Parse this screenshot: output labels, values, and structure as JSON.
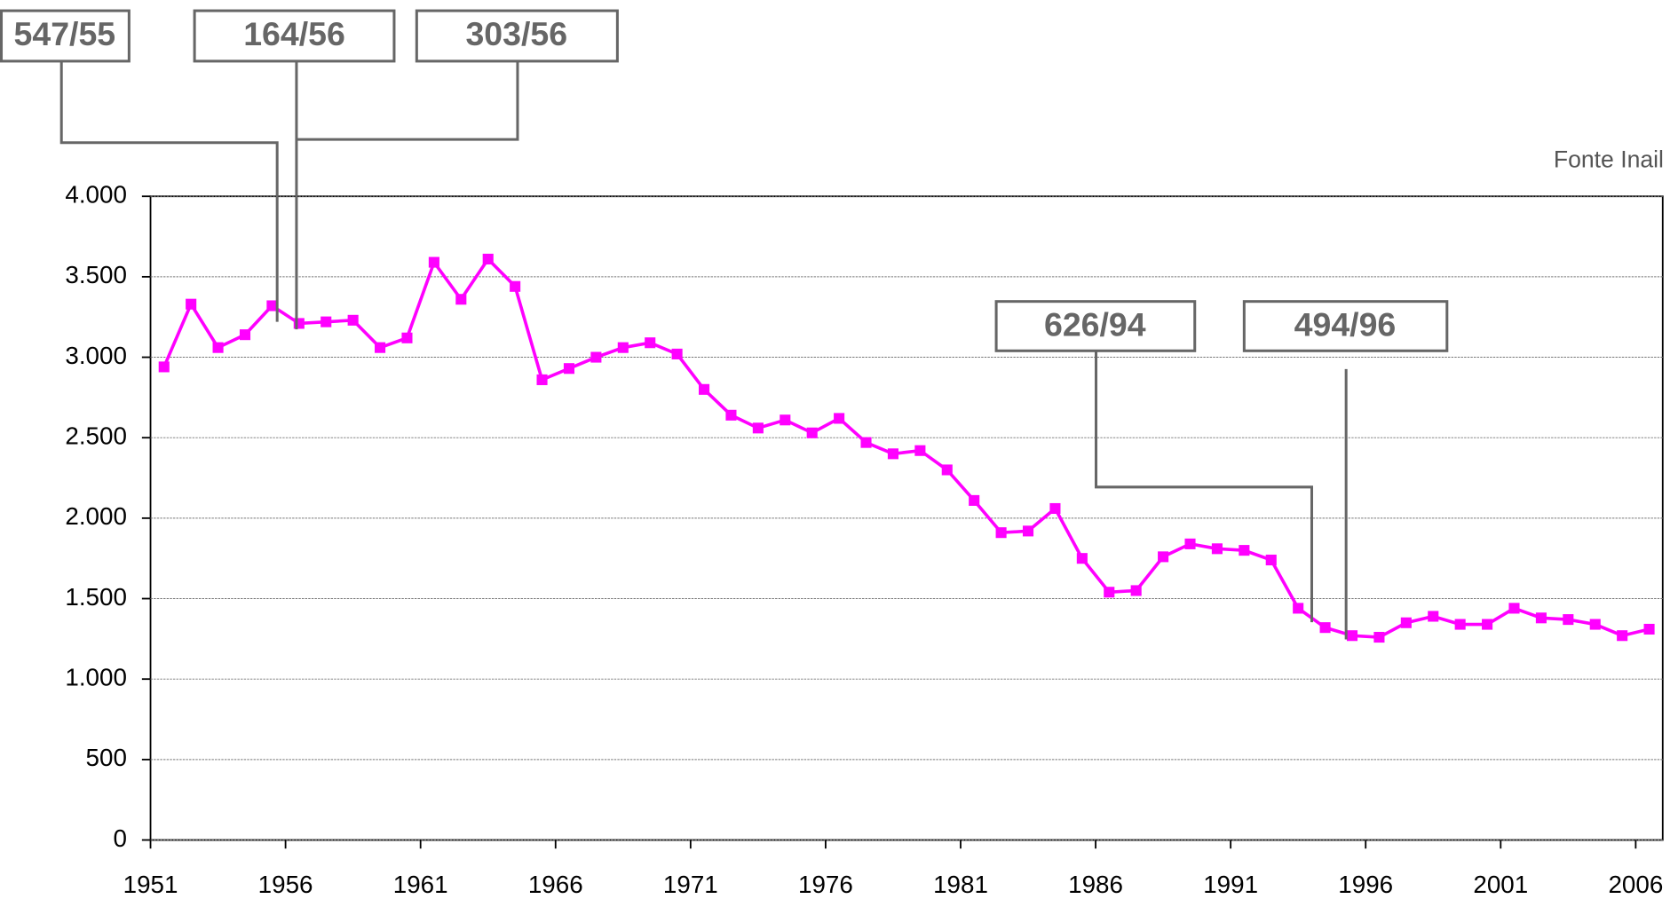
{
  "chart_data": {
    "type": "line",
    "source": "Fonte Inail",
    "annotations": [
      "547/55",
      "164/56",
      "303/56",
      "626/94",
      "494/96"
    ],
    "categories": [
      "1951",
      null,
      null,
      null,
      null,
      "1956",
      null,
      null,
      null,
      null,
      "1961",
      null,
      null,
      null,
      null,
      "1966",
      null,
      null,
      null,
      null,
      "1971",
      null,
      null,
      null,
      null,
      "1976",
      null,
      null,
      null,
      null,
      "1981",
      null,
      null,
      null,
      null,
      "1986",
      null,
      null,
      null,
      null,
      "1991",
      null,
      null,
      null,
      null,
      "1996",
      null,
      null,
      null,
      null,
      "2001",
      null,
      null,
      null,
      null,
      "2006"
    ],
    "values": [
      2940,
      3330,
      3060,
      3140,
      3320,
      3210,
      3220,
      3230,
      3060,
      3120,
      3590,
      3360,
      3610,
      3440,
      2860,
      2930,
      3000,
      3060,
      3090,
      3020,
      2800,
      2640,
      2560,
      2610,
      2530,
      2620,
      2470,
      2400,
      2420,
      2300,
      2110,
      1910,
      1920,
      2060,
      1750,
      1540,
      1550,
      1760,
      1840,
      1810,
      1800,
      1740,
      1440,
      1320,
      1270,
      1260,
      1350,
      1390,
      1340,
      1340,
      1440,
      1380,
      1370,
      1340,
      1270,
      1310
    ],
    "color": "#ff00ff",
    "ylim": [
      0,
      4000
    ],
    "yticks": [
      0,
      500,
      {
        "value": 1000,
        "label": "1.000"
      },
      {
        "value": 1500,
        "label": "1.500"
      },
      {
        "value": 2000,
        "label": "2.000"
      },
      {
        "value": 2500,
        "label": "2.500"
      },
      {
        "value": 3000,
        "label": "3.000"
      },
      {
        "value": 3500,
        "label": "3.500"
      },
      {
        "value": 4000,
        "label": "4.000"
      }
    ],
    "grid": true
  }
}
